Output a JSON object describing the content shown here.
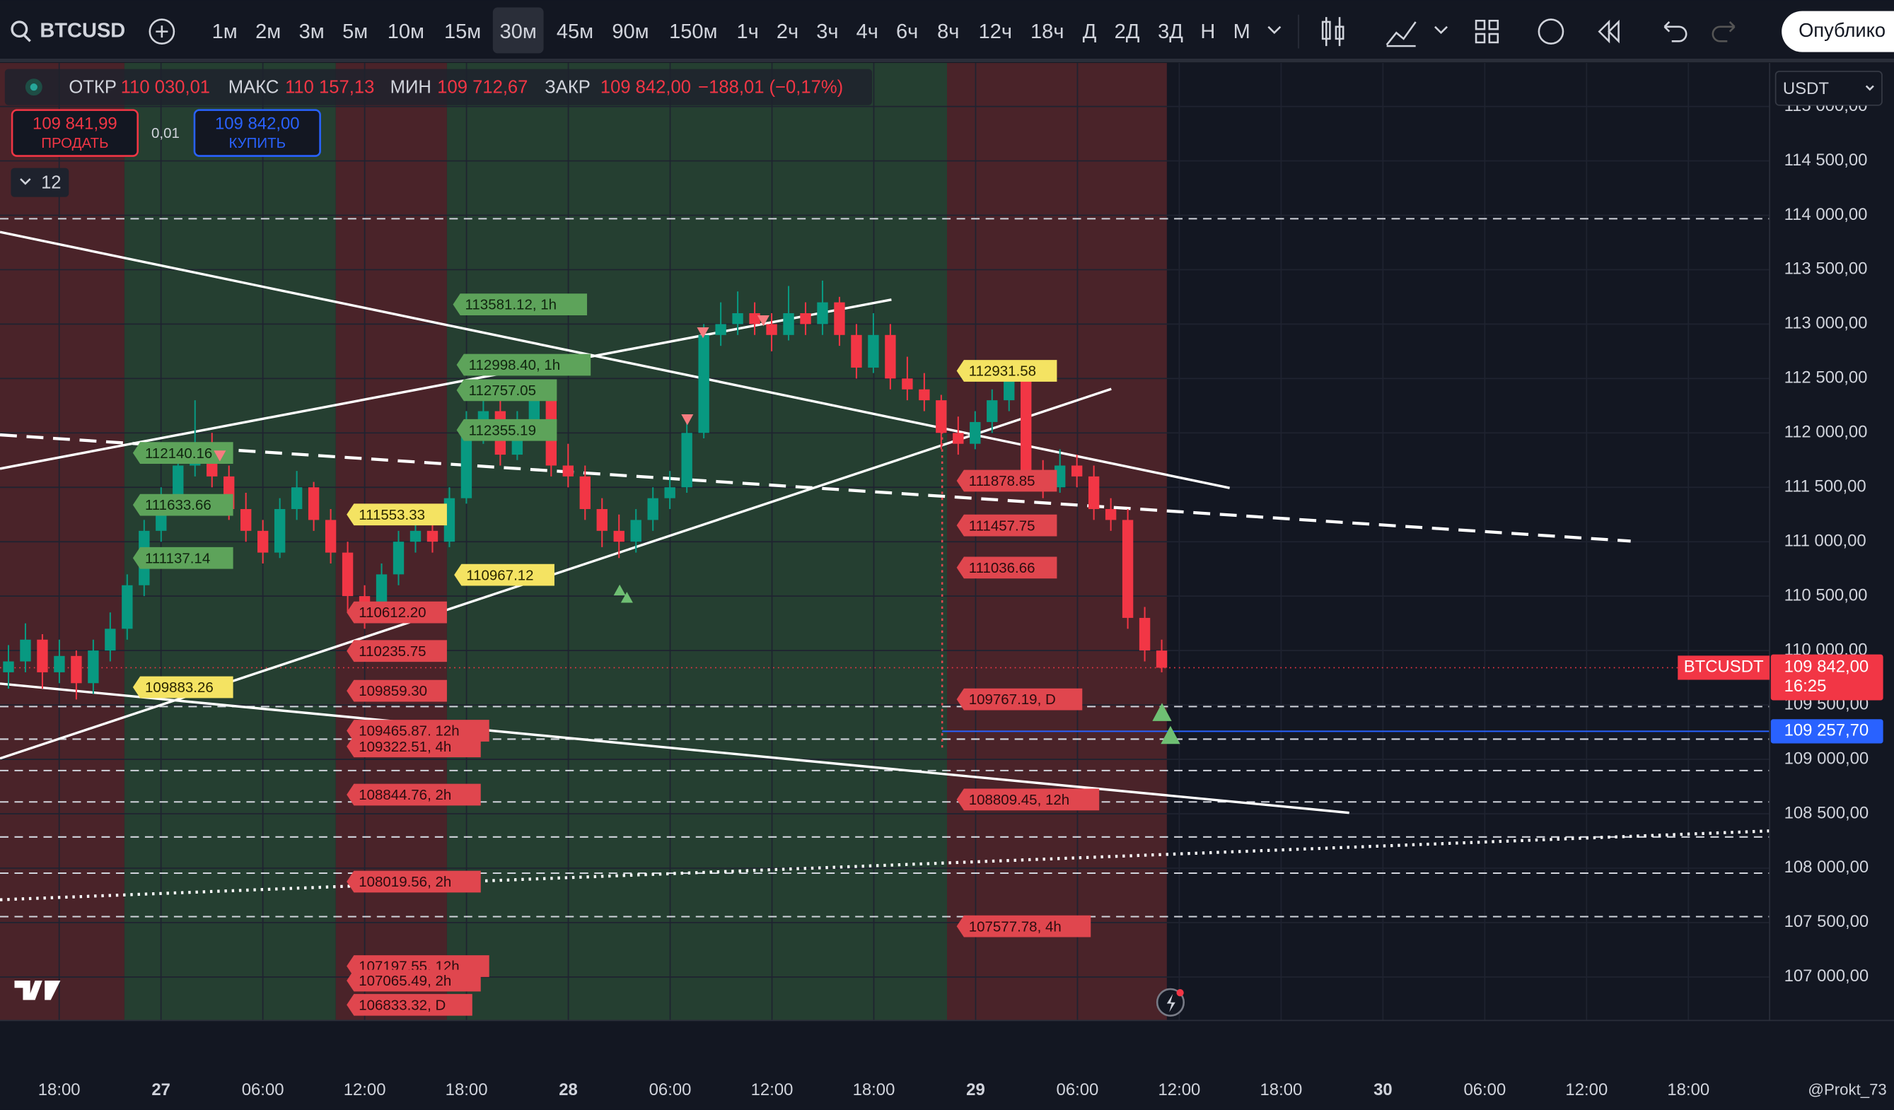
{
  "toolbar": {
    "symbol": "BTCUSD",
    "intervals": [
      "1м",
      "2м",
      "3м",
      "5м",
      "10м",
      "15м",
      "30м",
      "45м",
      "90м",
      "150м",
      "1ч",
      "2ч",
      "3ч",
      "4ч",
      "6ч",
      "8ч",
      "12ч",
      "18ч",
      "Д",
      "2Д",
      "3Д",
      "Н",
      "М"
    ],
    "active_interval": "30м",
    "publish": "Опублико"
  },
  "legend": {
    "open_label": "ОТКР",
    "open": "110 030,01",
    "high_label": "МАКС",
    "high": "110 157,13",
    "low_label": "МИН",
    "low": "109 712,67",
    "close_label": "ЗАКР",
    "close": "109 842,00",
    "change": "−188,01 (−0,17%)"
  },
  "trade": {
    "sell_price": "109 841,99",
    "sell": "ПРОДАТЬ",
    "spread": "0,01",
    "buy_price": "109 842,00",
    "buy": "КУПИТЬ",
    "indicators_count": "12"
  },
  "currency": "USDT",
  "chart": {
    "candles": [
      [
        109800,
        110050,
        109650,
        109900
      ],
      [
        109900,
        110250,
        109800,
        110100
      ],
      [
        110100,
        110150,
        109650,
        109800
      ],
      [
        109800,
        110100,
        109700,
        109950
      ],
      [
        109950,
        110000,
        109550,
        109700
      ],
      [
        109700,
        110100,
        109600,
        110000
      ],
      [
        110000,
        110350,
        109900,
        110200
      ],
      [
        110200,
        110700,
        110100,
        110600
      ],
      [
        110600,
        111200,
        110500,
        111100
      ],
      [
        111100,
        111500,
        111000,
        111400
      ],
      [
        111400,
        111800,
        111300,
        111700
      ],
      [
        111700,
        112300,
        111600,
        111900
      ],
      [
        111900,
        112000,
        111500,
        111600
      ],
      [
        111600,
        111700,
        111200,
        111300
      ],
      [
        111300,
        111450,
        111000,
        111100
      ],
      [
        111100,
        111200,
        110800,
        110900
      ],
      [
        110900,
        111400,
        110850,
        111300
      ],
      [
        111300,
        111650,
        111200,
        111500
      ],
      [
        111500,
        111550,
        111100,
        111200
      ],
      [
        111200,
        111300,
        110800,
        110900
      ],
      [
        110900,
        111000,
        110350,
        110500
      ],
      [
        110500,
        110600,
        110200,
        110300
      ],
      [
        110300,
        110800,
        110250,
        110700
      ],
      [
        110700,
        111100,
        110600,
        111000
      ],
      [
        111000,
        111250,
        110900,
        111100
      ],
      [
        111100,
        111200,
        110900,
        111000
      ],
      [
        111000,
        111500,
        110950,
        111400
      ],
      [
        111400,
        112200,
        111350,
        112000
      ],
      [
        112000,
        112350,
        111900,
        112200
      ],
      [
        112200,
        112300,
        111700,
        111800
      ],
      [
        111800,
        112200,
        111750,
        112100
      ],
      [
        112100,
        112450,
        112000,
        112300
      ],
      [
        112300,
        112350,
        111600,
        111700
      ],
      [
        111700,
        111900,
        111500,
        111600
      ],
      [
        111600,
        111700,
        111200,
        111300
      ],
      [
        111300,
        111400,
        110950,
        111100
      ],
      [
        111100,
        111250,
        110850,
        111000
      ],
      [
        111000,
        111300,
        110900,
        111200
      ],
      [
        111200,
        111500,
        111100,
        111400
      ],
      [
        111400,
        111650,
        111300,
        111500
      ],
      [
        111500,
        112100,
        111450,
        112000
      ],
      [
        112000,
        113000,
        111950,
        112900
      ],
      [
        112900,
        113200,
        112800,
        113000
      ],
      [
        113000,
        113300,
        112900,
        113100
      ],
      [
        113100,
        113200,
        112900,
        113000
      ],
      [
        113000,
        113100,
        112750,
        112900
      ],
      [
        112900,
        113350,
        112850,
        113100
      ],
      [
        113100,
        113200,
        112900,
        113000
      ],
      [
        113000,
        113400,
        112900,
        113200
      ],
      [
        113200,
        113250,
        112800,
        112900
      ],
      [
        112900,
        113000,
        112500,
        112600
      ],
      [
        112600,
        113100,
        112550,
        112900
      ],
      [
        112900,
        113000,
        112400,
        112500
      ],
      [
        112500,
        112700,
        112300,
        112400
      ],
      [
        112400,
        112550,
        112200,
        112300
      ],
      [
        112300,
        112350,
        111850,
        112000
      ],
      [
        112000,
        112150,
        111800,
        111900
      ],
      [
        111900,
        112200,
        111850,
        112100
      ],
      [
        112100,
        112400,
        112000,
        112300
      ],
      [
        112300,
        112600,
        112200,
        112500
      ],
      [
        112500,
        112550,
        111500,
        111600
      ],
      [
        111600,
        111750,
        111400,
        111500
      ],
      [
        111500,
        111850,
        111450,
        111700
      ],
      [
        111700,
        111800,
        111500,
        111600
      ],
      [
        111600,
        111700,
        111200,
        111300
      ],
      [
        111300,
        111400,
        111100,
        111200
      ],
      [
        111200,
        111300,
        110200,
        110300
      ],
      [
        110300,
        110400,
        109900,
        110000
      ],
      [
        110000,
        110100,
        109800,
        109842
      ]
    ],
    "up_color": "#089981",
    "down_color": "#f23645",
    "ylim": [
      106600,
      115400
    ],
    "yticks": [
      {
        "value": 115000,
        "label": "115 000,00"
      },
      {
        "value": 114500,
        "label": "114 500,00"
      },
      {
        "value": 114000,
        "label": "114 000,00"
      },
      {
        "value": 113500,
        "label": "113 500,00"
      },
      {
        "value": 113000,
        "label": "113 000,00"
      },
      {
        "value": 112500,
        "label": "112 500,00"
      },
      {
        "value": 112000,
        "label": "112 000,00"
      },
      {
        "value": 111500,
        "label": "111 500,00"
      },
      {
        "value": 111000,
        "label": "111 000,00"
      },
      {
        "value": 110500,
        "label": "110 500,00"
      },
      {
        "value": 110000,
        "label": "110 000,00"
      },
      {
        "value": 109500,
        "label": "109 500,00"
      },
      {
        "value": 109000,
        "label": "109 000,00"
      },
      {
        "value": 108500,
        "label": "108 500,00"
      },
      {
        "value": 108000,
        "label": "108 000,00"
      },
      {
        "value": 107500,
        "label": "107 500,00"
      },
      {
        "value": 107000,
        "label": "107 000,00"
      }
    ],
    "xticks": [
      "18:00",
      "27",
      "06:00",
      "12:00",
      "18:00",
      "28",
      "06:00",
      "12:00",
      "18:00",
      "29",
      "06:00",
      "12:00",
      "18:00",
      "30",
      "06:00",
      "12:00",
      "18:00"
    ],
    "current_price": {
      "value": 109842,
      "label": "109 842,00"
    },
    "countdown": "16:25",
    "symbol_tag": "BTCUSDT",
    "alert_price": {
      "value": 109257.7,
      "label": "109 257,70"
    },
    "levels": [
      {
        "text": "113581.12, 1h",
        "kind": "green"
      },
      {
        "text": "112998.40, 1h",
        "kind": "green"
      },
      {
        "text": "112757.05",
        "kind": "green"
      },
      {
        "text": "112355.19",
        "kind": "green"
      },
      {
        "text": "112140.16",
        "kind": "green"
      },
      {
        "text": "111633.66",
        "kind": "green"
      },
      {
        "text": "111137.14",
        "kind": "green"
      },
      {
        "text": "111553.33",
        "kind": "yellow"
      },
      {
        "text": "110967.12",
        "kind": "yellow"
      },
      {
        "text": "109883.26",
        "kind": "yellow"
      },
      {
        "text": "112931.58",
        "kind": "yellow"
      },
      {
        "text": "110612.20",
        "kind": "red"
      },
      {
        "text": "110235.75",
        "kind": "red"
      },
      {
        "text": "109859.30",
        "kind": "red"
      },
      {
        "text": "109465.87, 12h",
        "kind": "red"
      },
      {
        "text": "109322.51, 4h",
        "kind": "red"
      },
      {
        "text": "108844.76, 2h",
        "kind": "red"
      },
      {
        "text": "108019.56, 2h",
        "kind": "red"
      },
      {
        "text": "107197.55, 12h",
        "kind": "red"
      },
      {
        "text": "107065.49, 2h",
        "kind": "red"
      },
      {
        "text": "106833.32, D",
        "kind": "red"
      },
      {
        "text": "111878.85",
        "kind": "red"
      },
      {
        "text": "111457.75",
        "kind": "red"
      },
      {
        "text": "111036.66",
        "kind": "red"
      },
      {
        "text": "109767.19, D",
        "kind": "red"
      },
      {
        "text": "108809.45, 12h",
        "kind": "red"
      },
      {
        "text": "107577.78, 4h",
        "kind": "red"
      }
    ]
  },
  "watermark": "@Prokt_73"
}
